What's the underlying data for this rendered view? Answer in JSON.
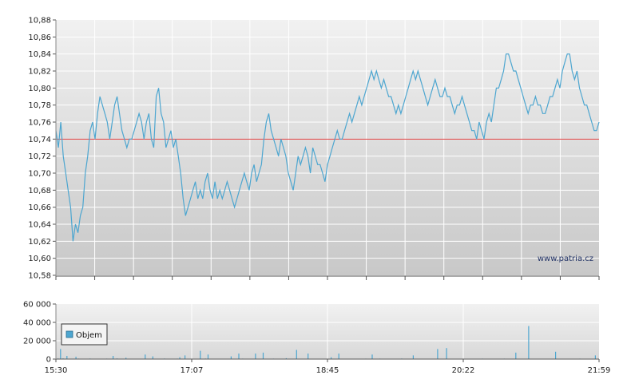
{
  "chart_data": [
    {
      "type": "line",
      "series": [
        {
          "values": [
            10.75,
            10.73,
            10.76,
            10.72,
            10.7,
            10.68,
            10.66,
            10.62,
            10.64,
            10.63,
            10.65,
            10.66,
            10.7,
            10.72,
            10.75,
            10.76,
            10.74,
            10.77,
            10.79,
            10.78,
            10.77,
            10.76,
            10.74,
            10.76,
            10.78,
            10.79,
            10.77,
            10.75,
            10.74,
            10.73,
            10.74,
            10.74,
            10.75,
            10.76,
            10.77,
            10.76,
            10.74,
            10.76,
            10.77,
            10.74,
            10.73,
            10.79,
            10.8,
            10.77,
            10.76,
            10.73,
            10.74,
            10.75,
            10.73,
            10.74,
            10.72,
            10.7,
            10.67,
            10.65,
            10.66,
            10.67,
            10.68,
            10.69,
            10.67,
            10.68,
            10.67,
            10.69,
            10.7,
            10.68,
            10.67,
            10.69,
            10.67,
            10.68,
            10.67,
            10.68,
            10.69,
            10.68,
            10.67,
            10.66,
            10.67,
            10.68,
            10.69,
            10.7,
            10.69,
            10.68,
            10.7,
            10.71,
            10.69,
            10.7,
            10.71,
            10.74,
            10.76,
            10.77,
            10.75,
            10.74,
            10.73,
            10.72,
            10.74,
            10.73,
            10.72,
            10.7,
            10.69,
            10.68,
            10.7,
            10.72,
            10.71,
            10.72,
            10.73,
            10.72,
            10.7,
            10.73,
            10.72,
            10.71,
            10.71,
            10.7,
            10.69,
            10.71,
            10.72,
            10.73,
            10.74,
            10.75,
            10.74,
            10.74,
            10.75,
            10.76,
            10.77,
            10.76,
            10.77,
            10.78,
            10.79,
            10.78,
            10.79,
            10.8,
            10.81,
            10.82,
            10.81,
            10.82,
            10.81,
            10.8,
            10.81,
            10.8,
            10.79,
            10.79,
            10.78,
            10.77,
            10.78,
            10.77,
            10.78,
            10.79,
            10.8,
            10.81,
            10.82,
            10.81,
            10.82,
            10.81,
            10.8,
            10.79,
            10.78,
            10.79,
            10.8,
            10.81,
            10.8,
            10.79,
            10.79,
            10.8,
            10.79,
            10.79,
            10.78,
            10.77,
            10.78,
            10.78,
            10.79,
            10.78,
            10.77,
            10.76,
            10.75,
            10.75,
            10.74,
            10.76,
            10.75,
            10.74,
            10.76,
            10.77,
            10.76,
            10.78,
            10.8,
            10.8,
            10.81,
            10.82,
            10.84,
            10.84,
            10.83,
            10.82,
            10.82,
            10.81,
            10.8,
            10.79,
            10.78,
            10.77,
            10.78,
            10.78,
            10.79,
            10.78,
            10.78,
            10.77,
            10.77,
            10.78,
            10.79,
            10.79,
            10.8,
            10.81,
            10.8,
            10.82,
            10.83,
            10.84,
            10.84,
            10.82,
            10.81,
            10.82,
            10.8,
            10.79,
            10.78,
            10.78,
            10.77,
            10.76,
            10.75,
            10.75,
            10.76
          ],
          "x_start": "15:30",
          "x_end": "21:59"
        }
      ],
      "reference_line": 10.74,
      "x_ticks": [
        "15:30",
        "17:07",
        "18:45",
        "20:22",
        "21:59"
      ],
      "y_ticks": [
        "10,58",
        "10,60",
        "10,62",
        "10,64",
        "10,66",
        "10,68",
        "10,70",
        "10,72",
        "10,74",
        "10,76",
        "10,78",
        "10,80",
        "10,82",
        "10,84",
        "10,86",
        "10,88"
      ],
      "ylim": [
        10.58,
        10.88
      ],
      "grid": true,
      "watermark": "www.patria.cz",
      "colors": {
        "line": "#4da6d0",
        "reference": "#e04040",
        "grid": "#ffffff"
      }
    },
    {
      "type": "bar",
      "series": [
        {
          "name": "Objem",
          "values": [
            600,
            300,
            11000,
            300,
            800,
            200,
            200,
            3500,
            400,
            200,
            300,
            200,
            300,
            200,
            2500,
            300,
            500,
            200,
            200,
            300,
            200,
            200,
            300,
            200,
            200,
            600,
            200,
            200,
            300,
            200,
            200,
            400,
            200,
            200,
            300,
            200,
            200,
            200,
            500,
            200,
            200,
            300,
            200,
            3500,
            300,
            200,
            700,
            300,
            200,
            200,
            300,
            400,
            200,
            1500,
            300,
            200,
            200,
            300,
            200,
            300,
            200,
            200,
            200,
            200,
            200,
            200,
            400,
            200,
            5000,
            200,
            300,
            200,
            200,
            200,
            3000,
            200,
            200,
            400,
            200,
            200,
            200,
            200,
            300,
            600,
            200,
            200,
            300,
            200,
            200,
            200,
            300,
            200,
            200,
            500,
            200,
            2000,
            200,
            300,
            200,
            4000,
            200,
            200,
            300,
            200,
            200,
            200,
            300,
            200,
            200,
            200,
            300,
            9000,
            300,
            200,
            200,
            600,
            200,
            5000,
            300,
            200,
            200,
            200,
            200,
            300,
            200,
            200,
            300,
            200,
            200,
            200,
            400,
            300,
            200,
            200,
            200,
            3000,
            200,
            300,
            200,
            200,
            300,
            6000,
            200,
            200,
            500,
            200,
            300,
            200,
            300,
            200,
            200,
            200,
            300,
            200,
            6000,
            300,
            200,
            200,
            200,
            400,
            7000,
            200,
            300,
            200,
            200,
            300,
            200,
            200,
            500,
            200,
            200,
            300,
            200,
            200,
            300,
            200,
            400,
            200,
            1000,
            300,
            200,
            200,
            300,
            200,
            300,
            200,
            10000,
            400,
            300,
            200,
            200,
            200,
            300,
            200,
            200,
            6000,
            200,
            400,
            200,
            200,
            300,
            200,
            200,
            200,
            300,
            200,
            200,
            200,
            200,
            300,
            200,
            200,
            200,
            2000,
            300,
            200,
            200,
            300,
            200,
            6000,
            200,
            300,
            200,
            200,
            400,
            200,
            200,
            200,
            300,
            200,
            200,
            300,
            200,
            200,
            400,
            200,
            200,
            300,
            200,
            200,
            500,
            200,
            200,
            300,
            200,
            5000,
            200,
            200,
            300,
            200,
            200,
            500,
            300,
            200,
            200,
            300,
            200,
            200,
            300,
            200,
            200,
            200,
            300,
            200,
            200,
            400,
            200,
            200,
            600,
            300,
            200,
            200,
            300,
            200,
            200,
            300,
            200,
            4000,
            200,
            200,
            300,
            200,
            200,
            300,
            200,
            200,
            300,
            200,
            200,
            200,
            300,
            200,
            200,
            200,
            300,
            200,
            11000,
            300,
            200,
            200,
            300,
            200,
            200,
            12000,
            300,
            200,
            200,
            300,
            200,
            200,
            300,
            200,
            200,
            400,
            200,
            200,
            300,
            200,
            200,
            300,
            200,
            200,
            300,
            200,
            200,
            200,
            400,
            300,
            300,
            200,
            200,
            500,
            200,
            300,
            200,
            200,
            200,
            300,
            200,
            200,
            200,
            400,
            200,
            200,
            300,
            200,
            200,
            200,
            500,
            200,
            200,
            300,
            200,
            200,
            300,
            200,
            200,
            7000,
            300,
            200,
            200,
            300,
            200,
            200,
            300,
            200,
            200,
            36000,
            300,
            200,
            200,
            300,
            200,
            300,
            200,
            400,
            200,
            200,
            300,
            200,
            200,
            200,
            300,
            200,
            200,
            300,
            200,
            200,
            8000,
            300,
            200,
            200,
            300,
            200,
            200,
            300,
            200,
            400,
            200,
            200,
            300,
            200,
            200,
            200,
            300,
            200,
            200,
            500,
            300,
            200,
            200,
            200,
            300,
            200,
            200,
            400,
            300,
            200,
            200,
            4000,
            200,
            300
          ]
        }
      ],
      "x_ticks": [
        "15:30",
        "17:07",
        "18:45",
        "20:22",
        "21:59"
      ],
      "y_ticks": [
        "0",
        "20 000",
        "40 000",
        "60 000"
      ],
      "ylim": [
        0,
        60000
      ],
      "legend": {
        "label": "Objem",
        "position": "left"
      },
      "colors": {
        "bar": "#4da6d0"
      }
    }
  ]
}
